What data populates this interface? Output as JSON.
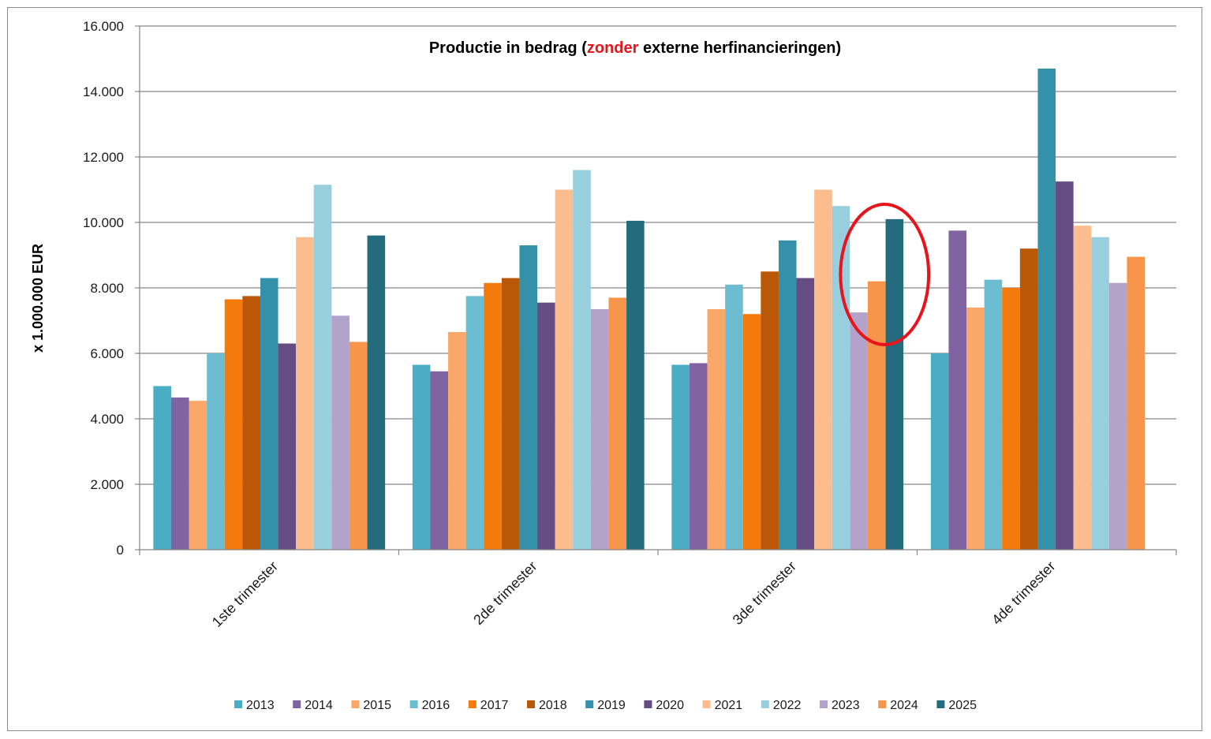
{
  "chart_data": {
    "type": "bar",
    "title_parts": [
      {
        "text": "Productie in bedrag (",
        "color": "#000000"
      },
      {
        "text": "zonder",
        "color": "#e8141b"
      },
      {
        "text": " externe herfinancieringen)",
        "color": "#000000"
      }
    ],
    "ylabel": "x 1.000.000 EUR",
    "xlabel": "",
    "ylim": [
      0,
      16000
    ],
    "yticks": [
      0,
      2000,
      4000,
      6000,
      8000,
      10000,
      12000,
      14000,
      16000
    ],
    "ytick_labels": [
      "0",
      "2.000",
      "4.000",
      "6.000",
      "8.000",
      "10.000",
      "12.000",
      "14.000",
      "16.000"
    ],
    "categories": [
      "1ste trimester",
      "2de trimester",
      "3de trimester",
      "4de trimester"
    ],
    "grid": true,
    "legend_position": "bottom",
    "series": [
      {
        "name": "2013",
        "color": "#4bacc6",
        "values": [
          5000,
          5650,
          5650,
          6000
        ]
      },
      {
        "name": "2014",
        "color": "#8064a2",
        "values": [
          4650,
          5450,
          5700,
          9750
        ]
      },
      {
        "name": "2015",
        "color": "#f9a86a",
        "values": [
          4550,
          6650,
          7350,
          7400
        ]
      },
      {
        "name": "2016",
        "color": "#6cbdd2",
        "values": [
          6000,
          7750,
          8100,
          8250
        ]
      },
      {
        "name": "2017",
        "color": "#f47a0c",
        "values": [
          7650,
          8150,
          7200,
          8000
        ]
      },
      {
        "name": "2018",
        "color": "#ba5807",
        "values": [
          7750,
          8300,
          8500,
          9200
        ]
      },
      {
        "name": "2019",
        "color": "#3590aa",
        "values": [
          8300,
          9300,
          9450,
          14700
        ]
      },
      {
        "name": "2020",
        "color": "#654c83",
        "values": [
          6300,
          7550,
          8300,
          11250
        ]
      },
      {
        "name": "2021",
        "color": "#fbbd8d",
        "values": [
          9550,
          11000,
          11000,
          9900
        ]
      },
      {
        "name": "2022",
        "color": "#97cfdf",
        "values": [
          11150,
          11600,
          10500,
          9550
        ]
      },
      {
        "name": "2023",
        "color": "#b3a2c9",
        "values": [
          7150,
          7350,
          7250,
          8150
        ]
      },
      {
        "name": "2024",
        "color": "#f7964a",
        "values": [
          6350,
          7700,
          8200,
          8950
        ]
      },
      {
        "name": "2025",
        "color": "#246b7e",
        "values": [
          9600,
          10050,
          10100,
          null
        ]
      }
    ],
    "annotation": {
      "type": "ellipse",
      "color": "#e8141b",
      "category_index": 2,
      "series_from": 10,
      "series_to": 12
    }
  }
}
